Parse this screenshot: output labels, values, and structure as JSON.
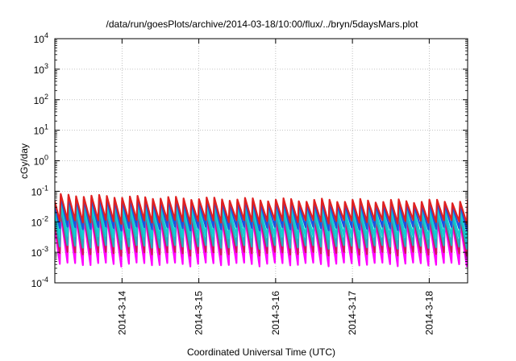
{
  "chart_data": {
    "type": "line",
    "title": "/data/run/goesPlots/archive/2014-03-18/10:00/flux/../bryn/5daysMars.plot",
    "xlabel": "Coordinated Universal Time (UTC)",
    "ylabel": "cGy/day",
    "yscale": "log",
    "ylim": [
      0.0001,
      10000
    ],
    "yticks": [
      {
        "value": 0.0001,
        "base": "10",
        "exp": "-4"
      },
      {
        "value": 0.001,
        "base": "10",
        "exp": "-3"
      },
      {
        "value": 0.01,
        "base": "10",
        "exp": "-2"
      },
      {
        "value": 0.1,
        "base": "10",
        "exp": "-1"
      },
      {
        "value": 1,
        "base": "10",
        "exp": "0"
      },
      {
        "value": 10,
        "base": "10",
        "exp": "1"
      },
      {
        "value": 100,
        "base": "10",
        "exp": "2"
      },
      {
        "value": 1000,
        "base": "10",
        "exp": "3"
      },
      {
        "value": 10000,
        "base": "10",
        "exp": "4"
      }
    ],
    "xlim": [
      "2014-03-13T03:00",
      "2014-03-18T12:00"
    ],
    "xticks": [
      "2014-3-14",
      "2014-3-15",
      "2014-3-16",
      "2014-3-17",
      "2014-3-18"
    ],
    "grid": true,
    "sawtooth_cycles_per_day": 10,
    "series": [
      {
        "color": "#ff00ff",
        "peak": 0.012,
        "trough": 0.0004
      },
      {
        "color": "#d01858",
        "peak": 0.015,
        "trough": 0.0009
      },
      {
        "color": "#20b0c0",
        "peak": 0.02,
        "trough": 0.0015
      },
      {
        "color": "#10d0d0",
        "peak": 0.03,
        "trough": 0.003
      },
      {
        "color": "#2050e0",
        "peak": 0.045,
        "trough": 0.006
      },
      {
        "color": "#e02020",
        "peak": 0.055,
        "trough": 0.01
      }
    ]
  }
}
